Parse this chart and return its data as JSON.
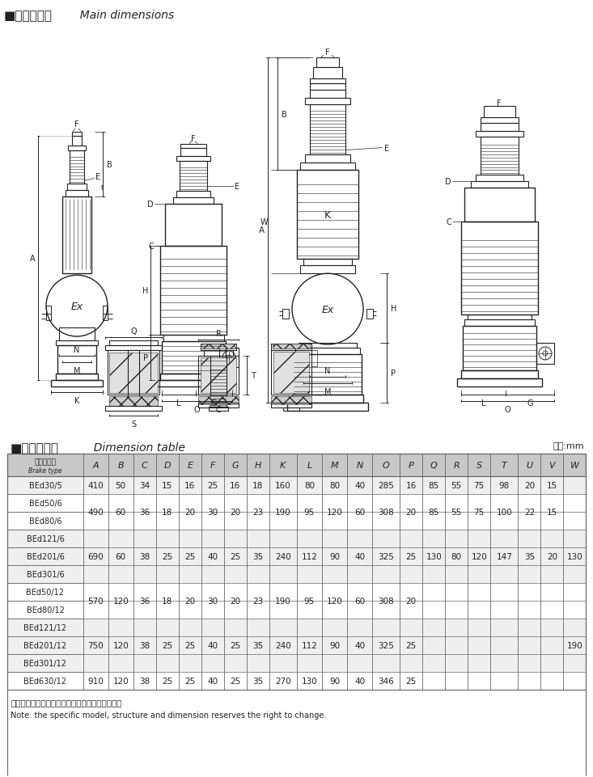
{
  "title_cn": "■外形尺寸图",
  "title_en": "  Main dimensions",
  "table_title_cn": "■外形尺寸表",
  "table_title_en": "  Dimension table",
  "unit_label": "单位:mm",
  "headers": [
    "推动器型号\nBrake type",
    "A",
    "B",
    "C",
    "D",
    "E",
    "F",
    "G",
    "H",
    "K",
    "L",
    "M",
    "N",
    "O",
    "P",
    "Q",
    "R",
    "S",
    "T",
    "U",
    "V",
    "W"
  ],
  "rows": [
    [
      "BEd30/5",
      "410",
      "50",
      "34",
      "15",
      "16",
      "25",
      "16",
      "18",
      "160",
      "80",
      "80",
      "40",
      "285",
      "16",
      "85",
      "55",
      "75",
      "98",
      "20",
      "15",
      ""
    ],
    [
      "BEd50/6",
      "",
      "",
      "",
      "",
      "",
      "",
      "",
      "",
      "",
      "",
      "",
      "",
      "",
      "",
      "",
      "",
      "",
      "",
      "",
      "",
      ""
    ],
    [
      "BEd80/6",
      "490",
      "60",
      "36",
      "18",
      "20",
      "30",
      "20",
      "23",
      "190",
      "95",
      "120",
      "60",
      "308",
      "20",
      "85",
      "55",
      "75",
      "100",
      "22",
      "15",
      ""
    ],
    [
      "BEd121/6",
      "",
      "",
      "",
      "",
      "",
      "",
      "",
      "",
      "",
      "",
      "",
      "",
      "",
      "",
      "",
      "",
      "",
      "",
      "",
      "",
      ""
    ],
    [
      "BEd201/6",
      "690",
      "60",
      "38",
      "25",
      "25",
      "40",
      "25",
      "35",
      "240",
      "112",
      "90",
      "40",
      "325",
      "25",
      "130",
      "80",
      "120",
      "147",
      "35",
      "20",
      "130"
    ],
    [
      "BEd301/6",
      "",
      "",
      "",
      "",
      "",
      "",
      "",
      "",
      "",
      "",
      "",
      "",
      "",
      "",
      "",
      "",
      "",
      "",
      "",
      "",
      ""
    ],
    [
      "BEd50/12",
      "",
      "",
      "",
      "",
      "",
      "",
      "",
      "",
      "",
      "",
      "",
      "",
      "",
      "",
      "",
      "",
      "",
      "",
      "",
      "",
      ""
    ],
    [
      "BEd80/12",
      "570",
      "120",
      "36",
      "18",
      "20",
      "30",
      "20",
      "23",
      "190",
      "95",
      "120",
      "60",
      "308",
      "20",
      "",
      "",
      "",
      "",
      "",
      "",
      ""
    ],
    [
      "BEd121/12",
      "",
      "",
      "",
      "",
      "",
      "",
      "",
      "",
      "",
      "",
      "",
      "",
      "",
      "",
      "",
      "",
      "",
      "",
      "",
      "",
      ""
    ],
    [
      "BEd201/12",
      "750",
      "120",
      "38",
      "25",
      "25",
      "40",
      "25",
      "35",
      "240",
      "112",
      "90",
      "40",
      "325",
      "25",
      "",
      "",
      "",
      "",
      "",
      "",
      "190"
    ],
    [
      "BEd301/12",
      "",
      "",
      "",
      "",
      "",
      "",
      "",
      "",
      "",
      "",
      "",
      "",
      "",
      "",
      "",
      "",
      "",
      "",
      "",
      "",
      ""
    ],
    [
      "BEd630/12",
      "910",
      "120",
      "38",
      "25",
      "25",
      "40",
      "25",
      "35",
      "270",
      "130",
      "90",
      "40",
      "346",
      "25",
      "",
      "",
      "",
      "",
      "",
      "",
      ""
    ]
  ],
  "row_groups": [
    {
      "rows": [
        0
      ],
      "data_row": 0
    },
    {
      "rows": [
        1,
        2
      ],
      "data_row": 2
    },
    {
      "rows": [
        3,
        4,
        5
      ],
      "data_row": 4
    },
    {
      "rows": [
        6,
        7
      ],
      "data_row": 7
    },
    {
      "rows": [
        8,
        9,
        10
      ],
      "data_row": 9
    },
    {
      "rows": [
        11
      ],
      "data_row": 11
    }
  ],
  "note_cn": "注：具体型号、结构及外形尺寸保留更改的权利。",
  "note_en": "Note: the specific model, structure and dimension reserves the right to change.",
  "bg_color": "#ffffff",
  "table_header_bg": "#c8c8c8",
  "table_row_even_bg": "#efefef",
  "table_row_odd_bg": "#ffffff",
  "table_border_color": "#666666",
  "drawing_color": "#222222",
  "lc": "#222222"
}
